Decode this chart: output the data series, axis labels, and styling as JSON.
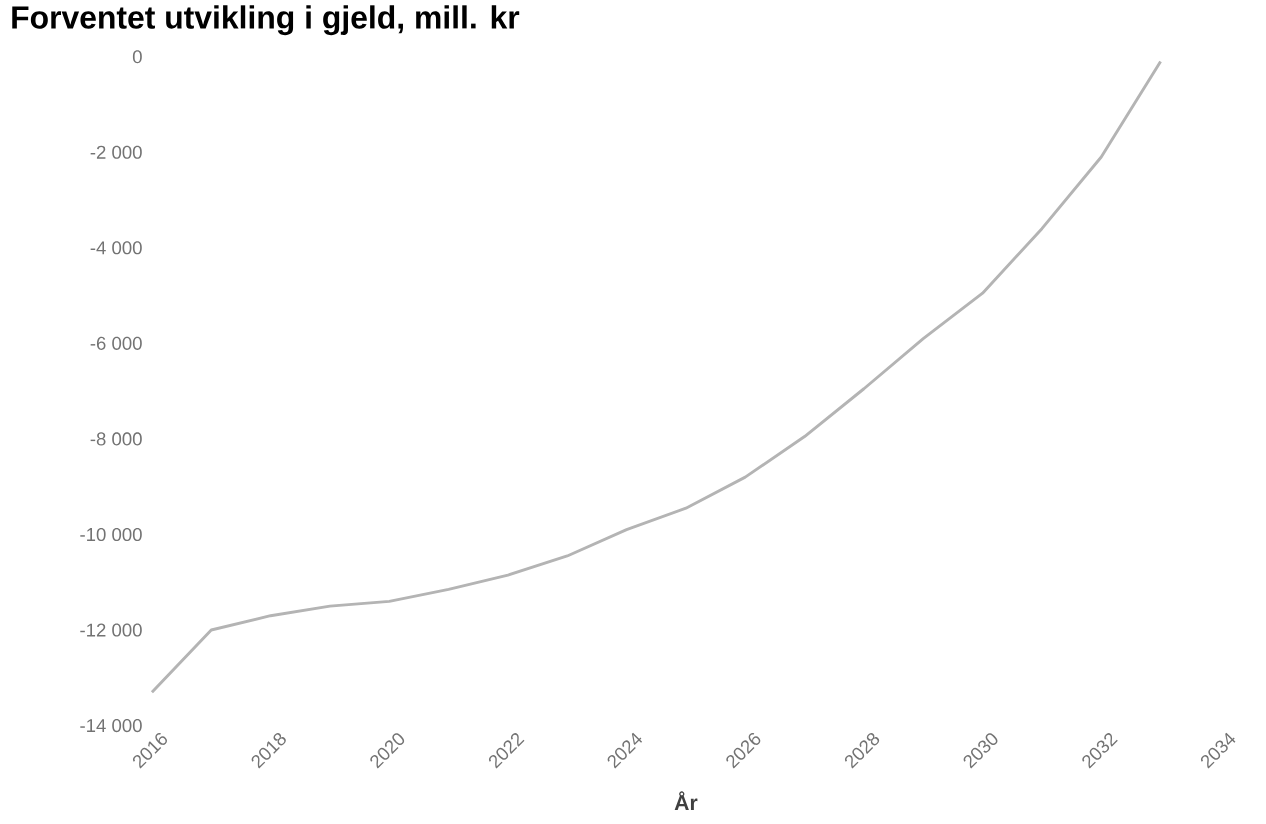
{
  "chart_data": {
    "type": "line",
    "title": "Forventet utvikling i gjeld, mill. kr",
    "xlabel": "År",
    "x": [
      2016,
      2017,
      2018,
      2019,
      2020,
      2021,
      2022,
      2023,
      2024,
      2025,
      2026,
      2027,
      2028,
      2029,
      2030,
      2031,
      2032,
      2033
    ],
    "series": [
      {
        "color": "#b4b4b4",
        "values": [
          -13300,
          -12000,
          -11700,
          -11500,
          -11400,
          -11150,
          -10850,
          -10450,
          -9900,
          -9450,
          -8800,
          -7950,
          -6950,
          -5900,
          -4950,
          -3600,
          -2100,
          -100
        ]
      }
    ],
    "xlim": [
      2016,
      2034
    ],
    "ylim": [
      -14000,
      0
    ],
    "xticks": [
      2016,
      2018,
      2020,
      2022,
      2024,
      2026,
      2028,
      2030,
      2032,
      2034
    ],
    "yticks": [
      {
        "value": -14000,
        "label": "-14 000"
      },
      {
        "value": -12000,
        "label": "-12 000"
      },
      {
        "value": -10000,
        "label": "-10 000"
      },
      {
        "value": -8000,
        "label": "-8 000"
      },
      {
        "value": -6000,
        "label": "-6 000"
      },
      {
        "value": -4000,
        "label": "-4 000"
      },
      {
        "value": -2000,
        "label": "-2 000"
      },
      0
    ]
  }
}
